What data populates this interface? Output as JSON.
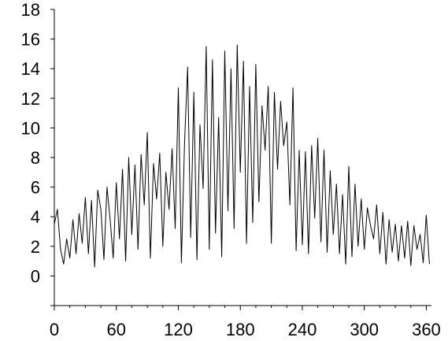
{
  "chart_data": {
    "type": "line",
    "title": "",
    "xlabel": "",
    "ylabel": "",
    "xlim": [
      0,
      365
    ],
    "ylim": [
      -2,
      18
    ],
    "xticks": [
      0,
      60,
      120,
      180,
      240,
      300,
      360
    ],
    "yticks": [
      0,
      2,
      4,
      6,
      8,
      10,
      12,
      14,
      16,
      18
    ],
    "grid": false,
    "legend": "none",
    "line_color": "#000000",
    "series": [
      {
        "x": [
          0,
          3,
          6,
          9,
          12,
          15,
          18,
          21,
          24,
          27,
          30,
          33,
          36,
          39,
          42,
          45,
          48,
          51,
          54,
          57,
          60,
          63,
          66,
          69,
          72,
          75,
          78,
          81,
          84,
          87,
          90,
          93,
          96,
          99,
          102,
          105,
          108,
          111,
          114,
          117,
          120,
          123,
          126,
          129,
          132,
          135,
          138,
          141,
          144,
          147,
          150,
          153,
          156,
          159,
          162,
          165,
          168,
          171,
          174,
          177,
          180,
          183,
          186,
          189,
          192,
          195,
          198,
          201,
          204,
          207,
          210,
          213,
          216,
          219,
          222,
          225,
          228,
          231,
          234,
          237,
          240,
          243,
          246,
          249,
          252,
          255,
          258,
          261,
          264,
          267,
          270,
          273,
          276,
          279,
          282,
          285,
          288,
          291,
          294,
          297,
          300,
          303,
          306,
          309,
          312,
          315,
          318,
          321,
          324,
          327,
          330,
          333,
          336,
          339,
          342,
          345,
          348,
          351,
          354,
          357,
          360,
          363
        ],
        "values": [
          3.5,
          4.5,
          1.8,
          0.8,
          2.5,
          1.2,
          3.8,
          1.5,
          4.2,
          2.2,
          5.3,
          1.5,
          5.1,
          0.6,
          5.8,
          4.5,
          1.1,
          6.0,
          3.8,
          1.2,
          6.3,
          2.5,
          7.2,
          1.0,
          8.0,
          2.8,
          7.5,
          1.8,
          8.2,
          4.8,
          9.7,
          1.2,
          7.6,
          5.2,
          8.3,
          2.0,
          7.0,
          4.5,
          8.6,
          3.2,
          12.7,
          0.9,
          9.0,
          14.1,
          2.6,
          12.4,
          1.1,
          10.2,
          5.9,
          15.5,
          1.8,
          14.6,
          2.9,
          10.7,
          1.3,
          15.2,
          4.4,
          14.0,
          3.2,
          15.6,
          7.0,
          14.5,
          2.2,
          12.8,
          3.6,
          14.3,
          5.0,
          11.5,
          8.5,
          12.8,
          2.2,
          12.4,
          7.2,
          11.8,
          8.8,
          10.4,
          4.8,
          12.7,
          1.7,
          8.5,
          2.1,
          8.4,
          1.5,
          8.8,
          3.9,
          9.3,
          2.3,
          8.5,
          1.6,
          7.1,
          2.8,
          6.2,
          1.5,
          5.5,
          0.8,
          7.4,
          1.3,
          6.2,
          2.0,
          5.2,
          1.8,
          4.6,
          3.4,
          2.5,
          4.8,
          1.5,
          4.3,
          0.8,
          3.8,
          1.6,
          3.5,
          1.0,
          3.4,
          1.2,
          3.7,
          0.7,
          3.4,
          1.8,
          2.8,
          0.9,
          4.1,
          0.8
        ]
      }
    ]
  }
}
